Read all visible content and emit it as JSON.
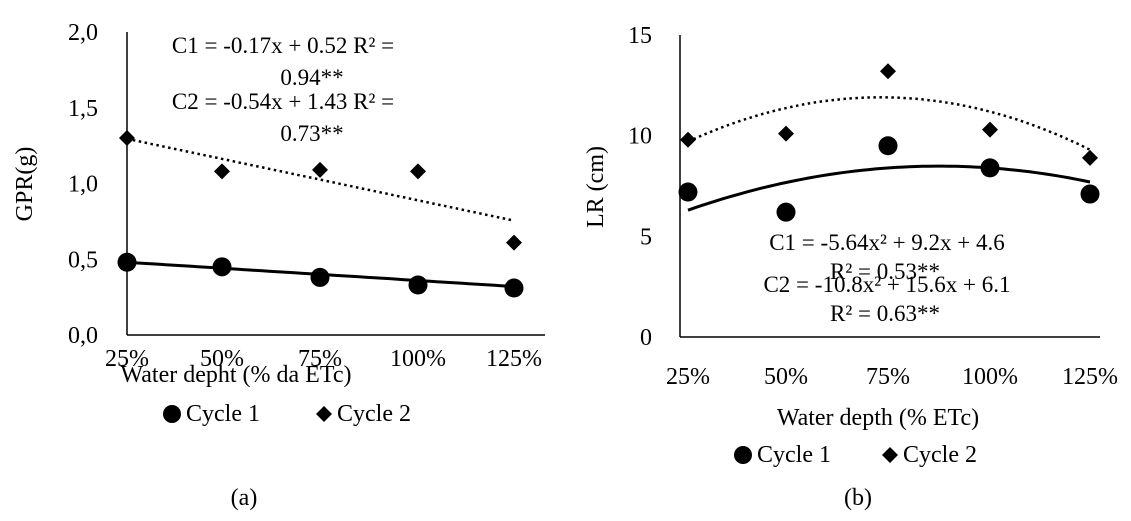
{
  "chart_data": [
    {
      "type": "scatter",
      "panel_label": "(a)",
      "ylabel": "GPR(g)",
      "xlabel": "Water depht (% da ETc)",
      "categories": [
        "25%",
        "50%",
        "75%",
        "100%",
        "125%"
      ],
      "ylim": [
        0,
        2
      ],
      "yticks": [
        "0,0",
        "0,5",
        "1,0",
        "1,5",
        "2,0"
      ],
      "ytick_values": [
        0,
        0.5,
        1,
        1.5,
        2
      ],
      "grid": false,
      "legend_position": "bottom",
      "series": [
        {
          "name": "Cycle 1",
          "marker": "circle",
          "values": [
            0.48,
            0.45,
            0.38,
            0.33,
            0.31
          ],
          "trendline": {
            "kind": "linear",
            "style": "solid",
            "coef": [
              -0.04,
              0.52
            ]
          }
        },
        {
          "name": "Cycle 2",
          "marker": "diamond",
          "values": [
            1.3,
            1.08,
            1.09,
            1.08,
            0.61
          ],
          "trendline": {
            "kind": "linear",
            "style": "dotted",
            "coef": [
              -0.135,
              1.43
            ]
          }
        }
      ],
      "annotations": [
        {
          "line1": "C1 = -0.17x + 0.52 R² =",
          "line2": "0.94**"
        },
        {
          "line1": "C2 = -0.54x + 1.43 R² =",
          "line2": "0.73**"
        }
      ]
    },
    {
      "type": "scatter",
      "panel_label": "(b)",
      "ylabel": "LR (cm)",
      "xlabel": "Water depth (% ETc)",
      "categories": [
        "25%",
        "50%",
        "75%",
        "100%",
        "125%"
      ],
      "ylim": [
        0,
        15
      ],
      "yticks": [
        "0",
        "5",
        "10",
        "15"
      ],
      "ytick_values": [
        0,
        5,
        10,
        15
      ],
      "grid": false,
      "legend_position": "bottom",
      "series": [
        {
          "name": "Cycle 1",
          "marker": "circle",
          "values": [
            7.2,
            6.2,
            9.5,
            8.4,
            7.1
          ],
          "trendline": {
            "kind": "poly2",
            "style": "solid",
            "coef": [
              -0.35,
              2.45,
              4.2
            ]
          }
        },
        {
          "name": "Cycle 2",
          "marker": "diamond",
          "values": [
            9.8,
            10.1,
            13.2,
            10.3,
            8.9
          ],
          "trendline": {
            "kind": "poly2",
            "style": "dotted",
            "coef": [
              -0.6,
              3.5,
              6.8
            ]
          }
        }
      ],
      "annotations": [
        {
          "line1": "C1 = -5.64x² + 9.2x + 4.6",
          "line2": "R² = 0.53**"
        },
        {
          "line1": "C2 = -10.8x² + 15.6x + 6.1",
          "line2": "R² = 0.63**"
        }
      ]
    }
  ]
}
